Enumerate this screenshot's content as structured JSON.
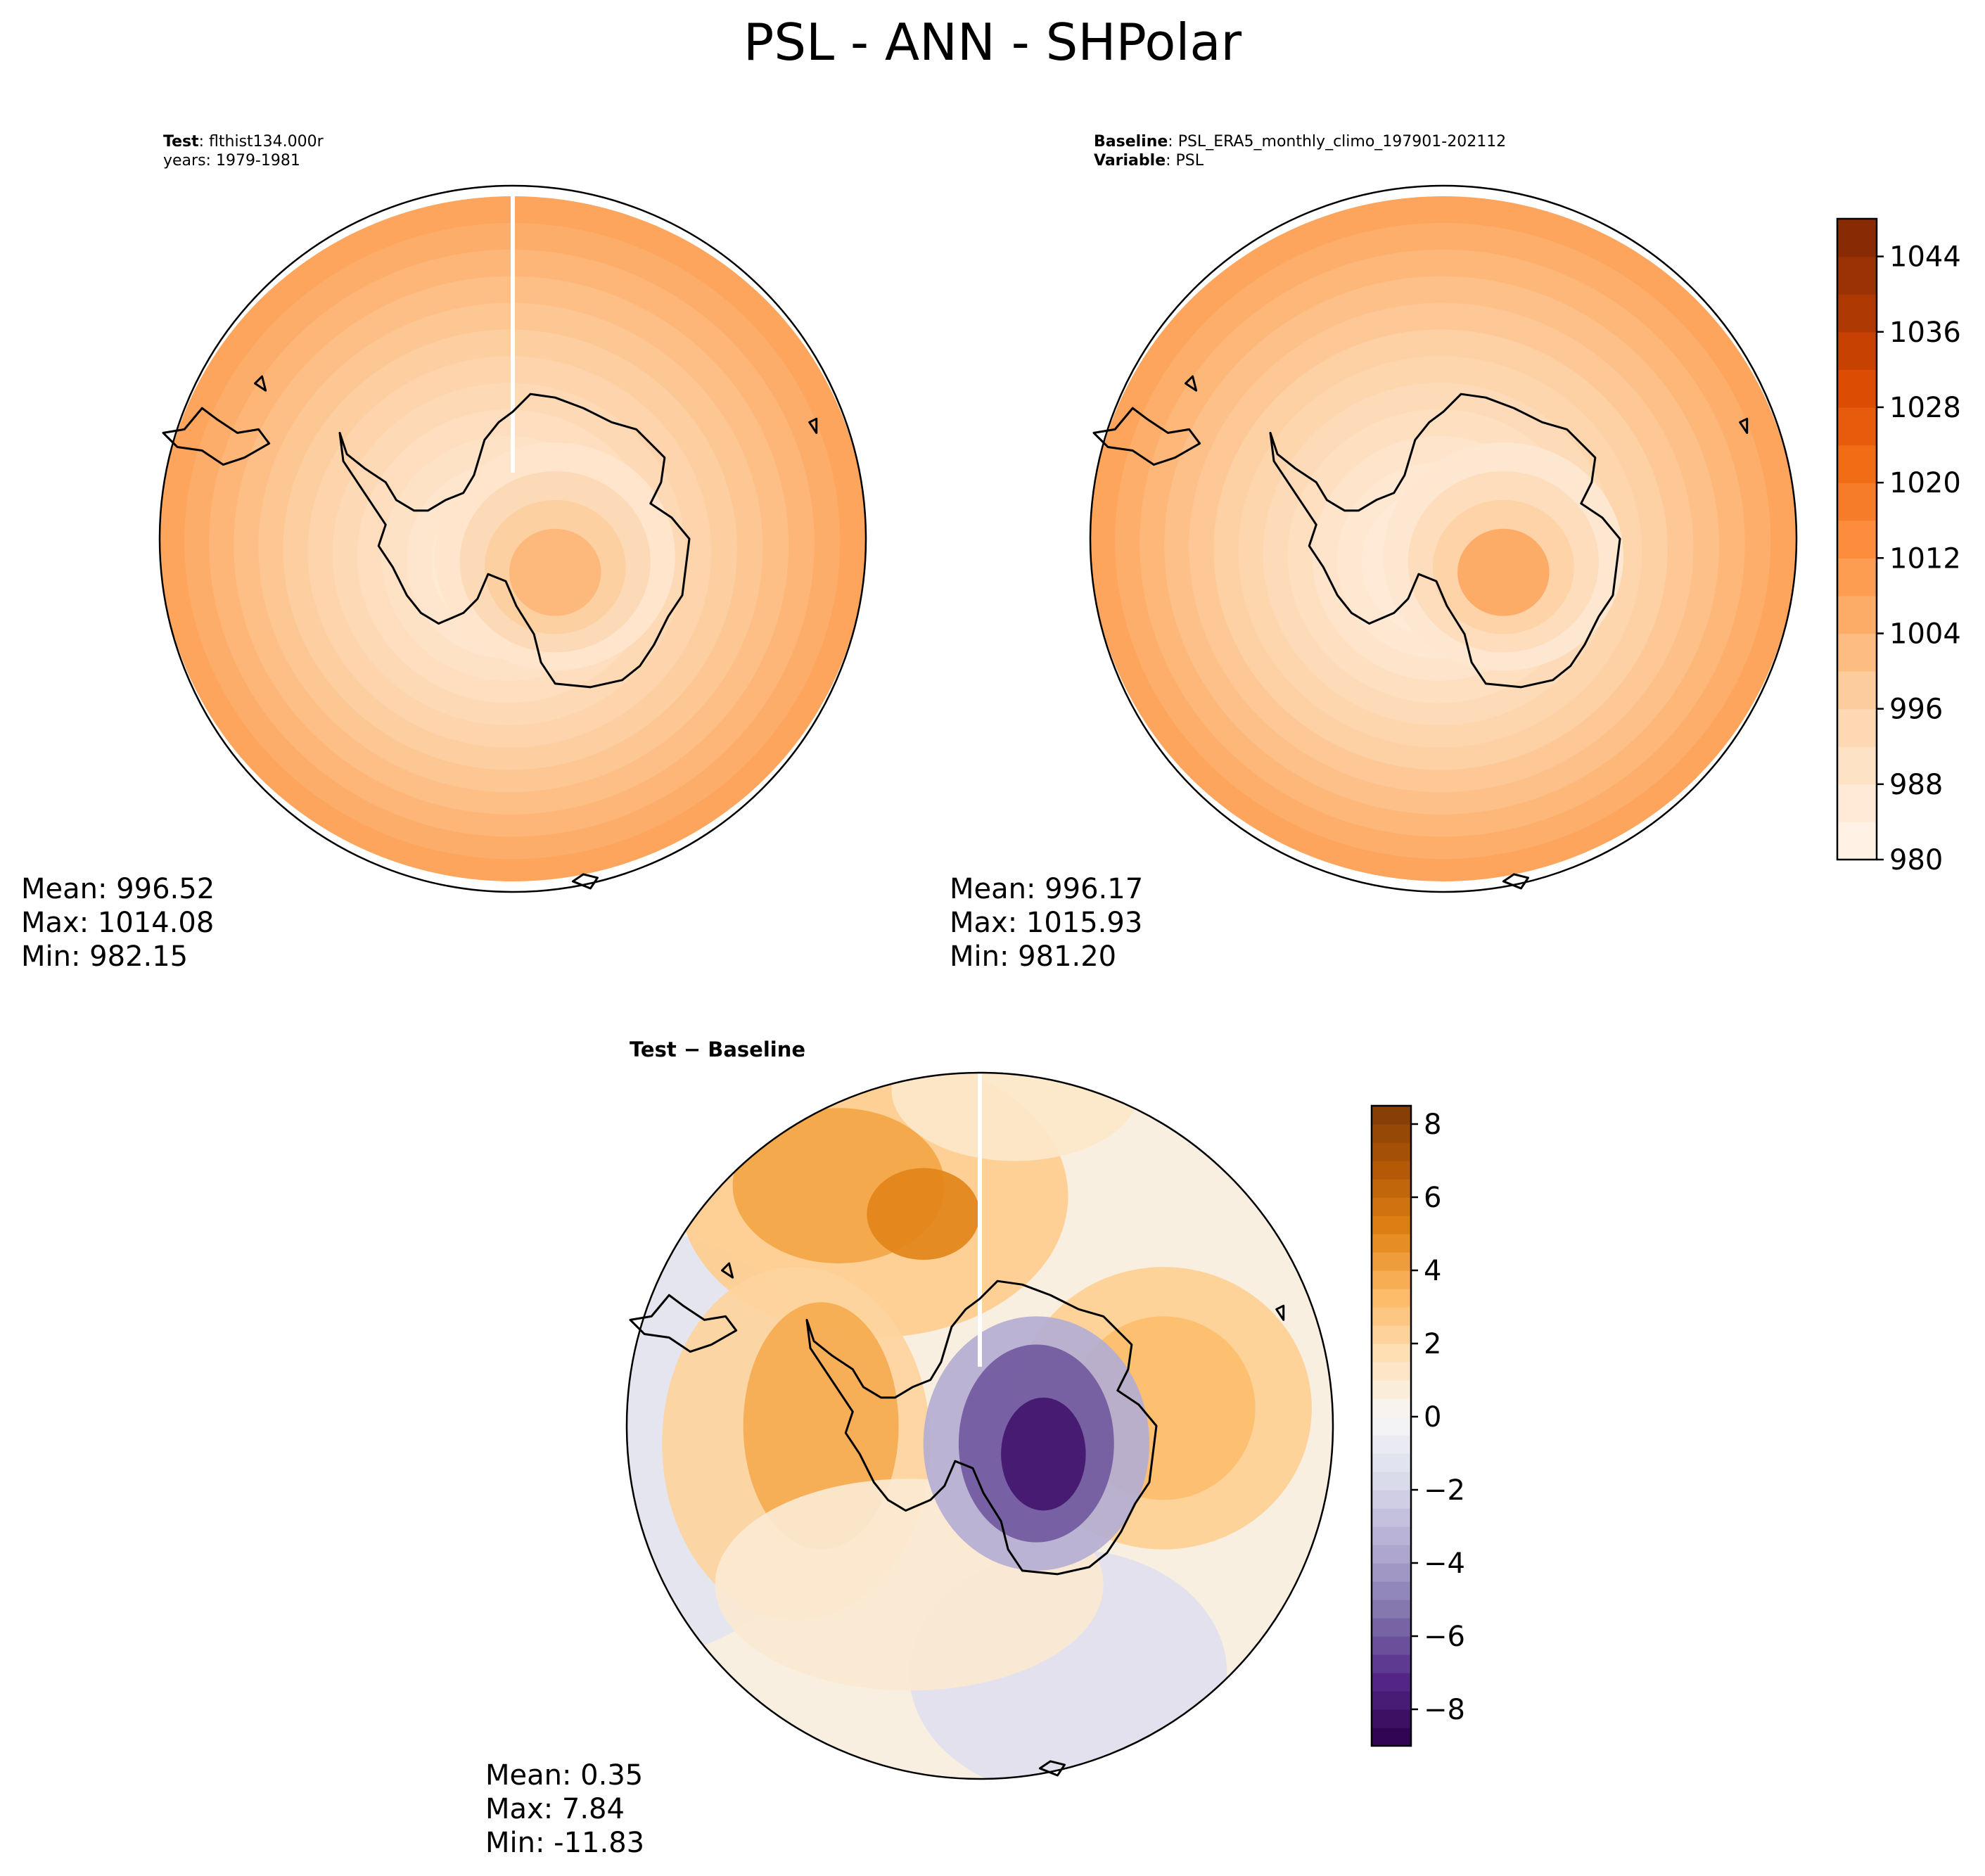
{
  "title": "PSL - ANN - SHPolar",
  "panels": {
    "test": {
      "label_bold": "Test",
      "label_rest": ": flthist134.000r",
      "line2": "years: 1979-1981",
      "stats": [
        "Mean: 996.52",
        "Max: 1014.08",
        "Min: 982.15"
      ],
      "field": {
        "edge": 1008,
        "ice_min": 985,
        "land_peak": 1003
      }
    },
    "baseline": {
      "label_bold": "Baseline",
      "label_rest": ": PSL_ERA5_monthly_climo_197901-202112",
      "line2_bold": "Variable",
      "line2_rest": ": PSL",
      "stats": [
        "Mean: 996.17",
        "Max: 1015.93",
        "Min: 981.20"
      ],
      "field": {
        "edge": 1008,
        "ice_min": 984,
        "land_peak": 1006
      }
    },
    "difference": {
      "label": "Test − Baseline",
      "stats": [
        "Mean:  0.35",
        "Max:  7.84",
        "Min: -11.83"
      ]
    }
  },
  "colorbars": {
    "psl": {
      "min": 980,
      "max": 1048,
      "step": 4,
      "ticks": [
        "980",
        "988",
        "996",
        "1004",
        "1012",
        "1020",
        "1028",
        "1036",
        "1044"
      ],
      "colors": [
        "#fff5eb",
        "#7f2704"
      ]
    },
    "diff": {
      "min": -9,
      "max": 8.5,
      "ticks": [
        "−8",
        "−6",
        "−4",
        "−2",
        "0",
        "2",
        "4",
        "6",
        "8"
      ],
      "colors": [
        "#2d004b",
        "#f7f7f7",
        "#7f3b08"
      ]
    }
  }
}
